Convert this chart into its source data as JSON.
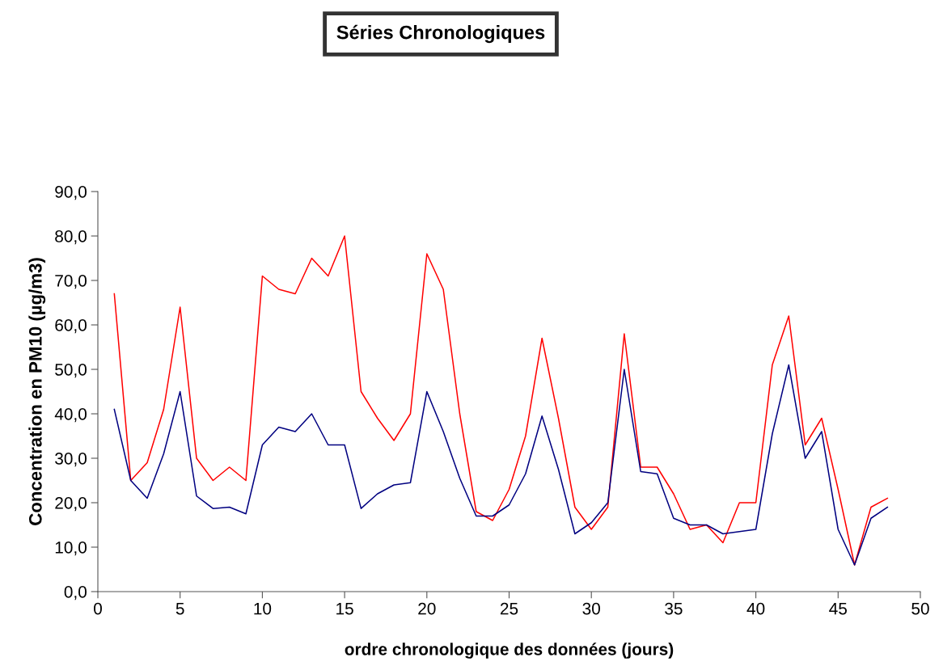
{
  "chart_data": {
    "type": "line",
    "title": "Séries Chronologiques",
    "xlabel": "ordre chronologique des données (jours)",
    "ylabel": "Concentration en PM10 (µg/m3)",
    "x": [
      1,
      2,
      3,
      4,
      5,
      6,
      7,
      8,
      9,
      10,
      11,
      12,
      13,
      14,
      15,
      16,
      17,
      18,
      19,
      20,
      21,
      22,
      23,
      24,
      25,
      26,
      27,
      28,
      29,
      30,
      31,
      32,
      33,
      34,
      35,
      36,
      37,
      38,
      39,
      40,
      41,
      42,
      43,
      44,
      45,
      46,
      47,
      48
    ],
    "series": [
      {
        "color": "#ff0000",
        "values": [
          67,
          25,
          29,
          41,
          64,
          30,
          25,
          28,
          25,
          71,
          68,
          67,
          75,
          71,
          80,
          45,
          39,
          34,
          40,
          76,
          68,
          40,
          18,
          16,
          23,
          35,
          57,
          39,
          19,
          14,
          19,
          58,
          28,
          28,
          22,
          14,
          15,
          11,
          20,
          20,
          51,
          62,
          33,
          39,
          23,
          6,
          19,
          21
        ]
      },
      {
        "color": "#000080",
        "values": [
          41,
          25,
          21,
          31,
          45,
          21.5,
          18.7,
          19,
          17.5,
          33,
          37,
          36,
          40,
          33,
          33,
          18.7,
          22,
          24,
          24.5,
          45,
          36,
          25.5,
          17,
          17,
          19.5,
          26.5,
          39.5,
          27.5,
          13,
          15.5,
          20,
          50,
          27,
          26.5,
          16.5,
          15,
          15,
          13,
          13.5,
          14,
          35.5,
          51,
          30,
          36,
          14,
          6,
          16.5,
          19
        ]
      }
    ],
    "xlim": [
      0,
      50
    ],
    "xticks": [
      0,
      5,
      10,
      15,
      20,
      25,
      30,
      35,
      40,
      45,
      50
    ],
    "ylim": [
      0,
      90
    ],
    "yticks": [
      {
        "value": 0,
        "label": "0,0"
      },
      {
        "value": 10,
        "label": "10,0"
      },
      {
        "value": 20,
        "label": "20,0"
      },
      {
        "value": 30,
        "label": "30,0"
      },
      {
        "value": 40,
        "label": "40,0"
      },
      {
        "value": 50,
        "label": "50,0"
      },
      {
        "value": 60,
        "label": "60,0"
      },
      {
        "value": 70,
        "label": "70,0"
      },
      {
        "value": 80,
        "label": "80,0"
      },
      {
        "value": 90,
        "label": "90,0"
      }
    ],
    "grid": false,
    "marker": "none",
    "line_style": "solid"
  }
}
